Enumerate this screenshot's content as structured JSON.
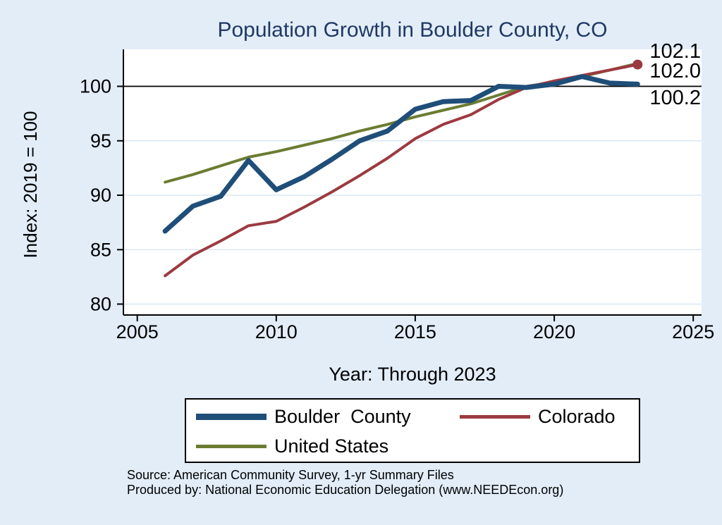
{
  "title": "Population Growth in Boulder County, CO",
  "y_axis": {
    "label": "Index: 2019 = 100"
  },
  "x_axis": {
    "label": "Year: Through 2023"
  },
  "end_labels": [
    "102.1",
    "102.0",
    "100.2"
  ],
  "colors": {
    "background": "#e2edf8",
    "plot_background": "#ffffff",
    "title": "#1f3864",
    "grid": "#d9e7f4",
    "axis": "#000000",
    "reference_line": "#000000",
    "boulder_county": "#1f4e79",
    "colorado": "#9c3a40",
    "united_states": "#6b7c32"
  },
  "legend": {
    "items": [
      {
        "id": "boulder-county",
        "label": "Boulder  County",
        "color": "#1f4e79",
        "swatch_height": 9
      },
      {
        "id": "colorado",
        "label": "Colorado",
        "color": "#9c3a40",
        "swatch_height": 5
      },
      {
        "id": "united-states",
        "label": "United States",
        "color": "#6b7c32",
        "swatch_height": 5
      }
    ]
  },
  "source": {
    "line1": "Source: American Community Survey, 1-yr Summary Files",
    "line2": "Produced by: National Economic Education Delegation (www.NEEDEcon.org)"
  },
  "chart_data": {
    "type": "line",
    "title": "Population Growth in Boulder County, CO",
    "xlabel": "Year: Through 2023",
    "ylabel": "Index: 2019 = 100",
    "x": [
      2006,
      2007,
      2008,
      2009,
      2010,
      2011,
      2012,
      2013,
      2014,
      2015,
      2016,
      2017,
      2018,
      2019,
      2020,
      2021,
      2022,
      2023
    ],
    "series": [
      {
        "id": "boulder-county",
        "name": "Boulder County",
        "color": "#1f4e79",
        "width": 7,
        "values": [
          86.7,
          89.0,
          89.9,
          93.2,
          90.5,
          91.7,
          93.3,
          95.0,
          95.9,
          97.9,
          98.6,
          98.7,
          100.0,
          99.9,
          100.2,
          100.9,
          100.3,
          100.2
        ],
        "end_value_label": "100.2"
      },
      {
        "id": "colorado",
        "name": "Colorado",
        "color": "#9c3a40",
        "width": 4,
        "values": [
          82.6,
          84.5,
          85.8,
          87.2,
          87.6,
          88.9,
          90.3,
          91.8,
          93.4,
          95.2,
          96.5,
          97.4,
          98.8,
          99.9,
          100.5,
          101.0,
          101.5,
          102.0
        ],
        "end_value_label": "102.0",
        "end_marker": true
      },
      {
        "id": "united-states",
        "name": "United States",
        "color": "#6b7c32",
        "width": 4,
        "values": [
          91.2,
          91.9,
          92.7,
          93.5,
          94.0,
          94.6,
          95.2,
          95.9,
          96.5,
          97.2,
          97.8,
          98.4,
          99.2,
          100.0,
          100.4,
          100.9,
          101.5,
          102.1
        ],
        "end_value_label": "102.1"
      }
    ],
    "xticks": [
      2005,
      2010,
      2015,
      2020,
      2025
    ],
    "yticks": [
      80,
      85,
      90,
      95,
      100
    ],
    "reference_line_y": 100,
    "xlim": [
      2004.5,
      2025.3
    ],
    "ylim": [
      79.0,
      103.4
    ],
    "grid": true,
    "legend_position": "below"
  }
}
